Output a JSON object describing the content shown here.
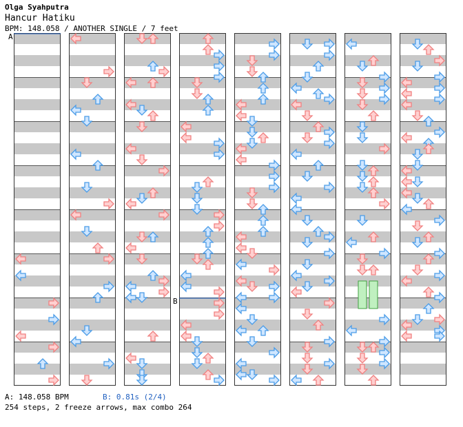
{
  "header": {
    "artist": "Olga Syahputra",
    "title": "Hancur Hatiku",
    "info": "BPM: 148.058 / ANOTHER SINGLE / 7 feet"
  },
  "footer": {
    "bpm_label": "A: 148.058 BPM",
    "stop_label": "B: 0.81s (2/4)",
    "stats": "254 steps, 2 freeze arrows, max combo 264"
  },
  "markers": {
    "a": "A",
    "b": "B"
  },
  "colors": {
    "red_arrow": "#f08080",
    "blue_arrow": "#4a9ce8",
    "freeze": "#c0f0c0",
    "stripe": "#c8c8c8",
    "bpm_text": "#2060c0"
  },
  "lanes": [
    "left",
    "down",
    "up",
    "right"
  ],
  "columns": [
    {
      "notes": []
    },
    {
      "notes": []
    },
    {
      "notes": []
    },
    {
      "notes": []
    },
    {
      "notes": []
    },
    {
      "notes": []
    },
    {
      "notes": []
    },
    {
      "notes": []
    }
  ]
}
